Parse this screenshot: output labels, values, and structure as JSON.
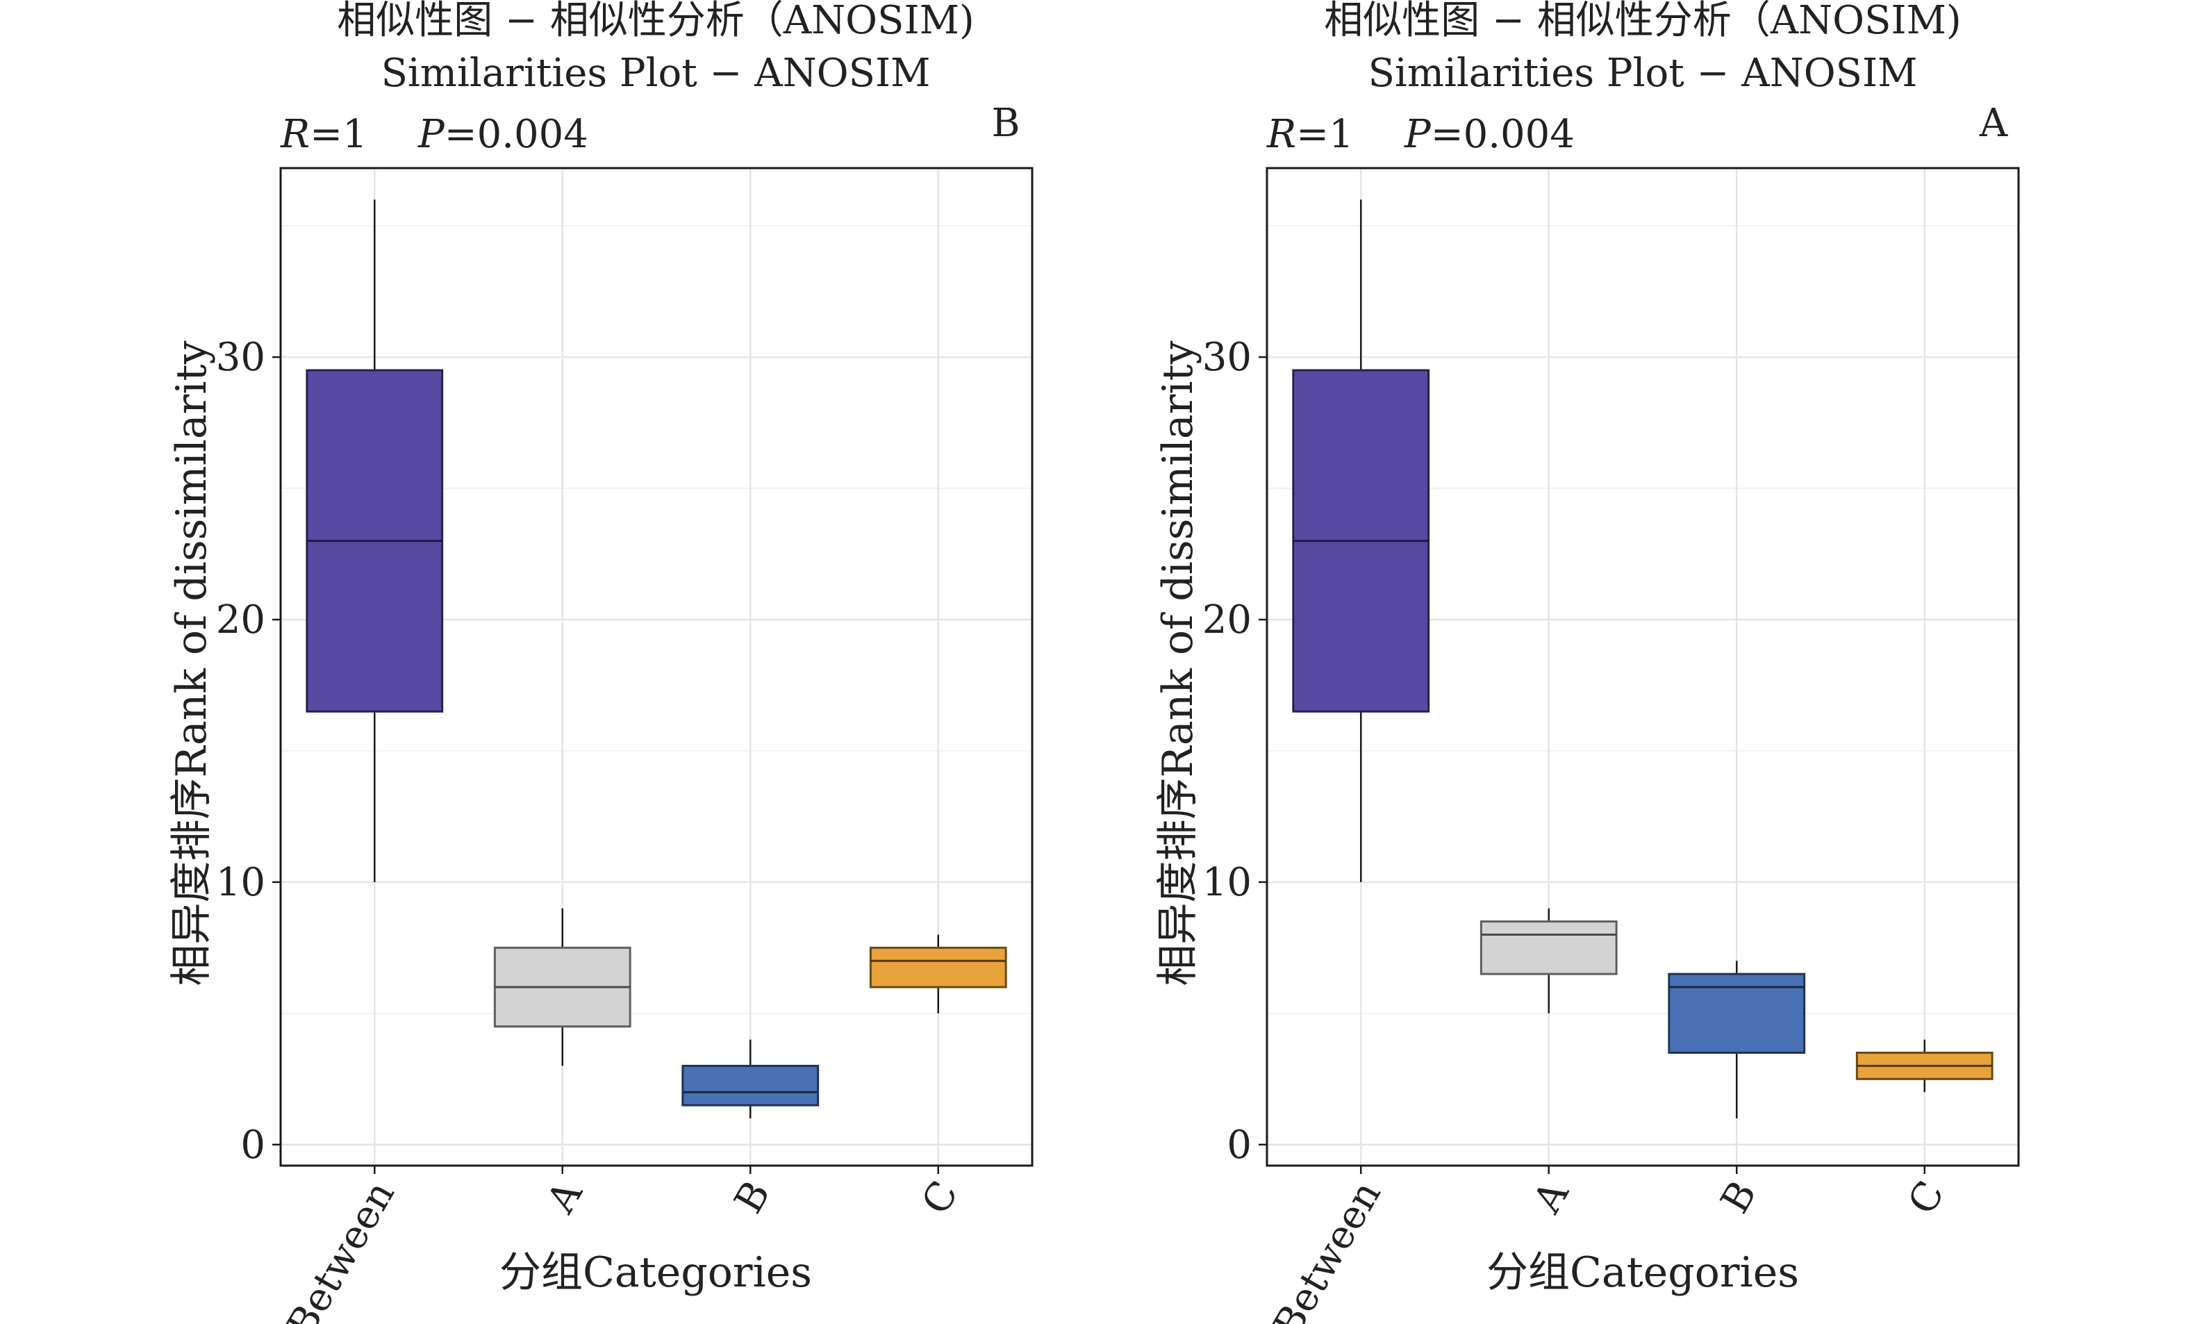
{
  "chart_data": [
    {
      "type": "box",
      "title": "相似性图 − 相似性分析（ANOSIM)",
      "subtitle": "Similarities Plot − ANOSIM",
      "panel_label": "B",
      "r_symbol": "R",
      "r_value": "=1",
      "p_symbol": "P",
      "p_value": "=0.004",
      "xlabel": "分组Categories",
      "ylabel": "相异度排序Rank of dissimilarity",
      "ylim": [
        -0.8,
        37.2
      ],
      "yticks": [
        0,
        10,
        20,
        30
      ],
      "grid": true,
      "categories": [
        "Between",
        "A",
        "B",
        "C"
      ],
      "boxes": [
        {
          "category": "Between",
          "min": 10,
          "q1": 16.5,
          "median": 23,
          "q3": 29.5,
          "max": 36,
          "color": "#5849a3"
        },
        {
          "category": "A",
          "min": 3,
          "q1": 4.5,
          "median": 6,
          "q3": 7.5,
          "max": 9,
          "color": "#d3d3d3"
        },
        {
          "category": "B",
          "min": 1,
          "q1": 1.5,
          "median": 2,
          "q3": 3,
          "max": 4,
          "color": "#4a70b5"
        },
        {
          "category": "C",
          "min": 5,
          "q1": 6,
          "median": 7,
          "q3": 7.5,
          "max": 8,
          "color": "#e8a33a"
        }
      ]
    },
    {
      "type": "box",
      "title": "相似性图 − 相似性分析（ANOSIM)",
      "subtitle": "Similarities Plot − ANOSIM",
      "panel_label": "A",
      "r_symbol": "R",
      "r_value": "=1",
      "p_symbol": "P",
      "p_value": "=0.004",
      "xlabel": "分组Categories",
      "ylabel": "相异度排序Rank of dissimilarity",
      "ylim": [
        -0.8,
        37.2
      ],
      "yticks": [
        0,
        10,
        20,
        30
      ],
      "grid": true,
      "categories": [
        "Between",
        "A",
        "B",
        "C"
      ],
      "boxes": [
        {
          "category": "Between",
          "min": 10,
          "q1": 16.5,
          "median": 23,
          "q3": 29.5,
          "max": 36,
          "color": "#5849a3"
        },
        {
          "category": "A",
          "min": 5,
          "q1": 6.5,
          "median": 8,
          "q3": 8.5,
          "max": 9,
          "color": "#d3d3d3"
        },
        {
          "category": "B",
          "min": 1,
          "q1": 3.5,
          "median": 6,
          "q3": 6.5,
          "max": 7,
          "color": "#4a70b5"
        },
        {
          "category": "C",
          "min": 2,
          "q1": 2.5,
          "median": 3,
          "q3": 3.5,
          "max": 4,
          "color": "#e8a33a"
        }
      ]
    }
  ]
}
